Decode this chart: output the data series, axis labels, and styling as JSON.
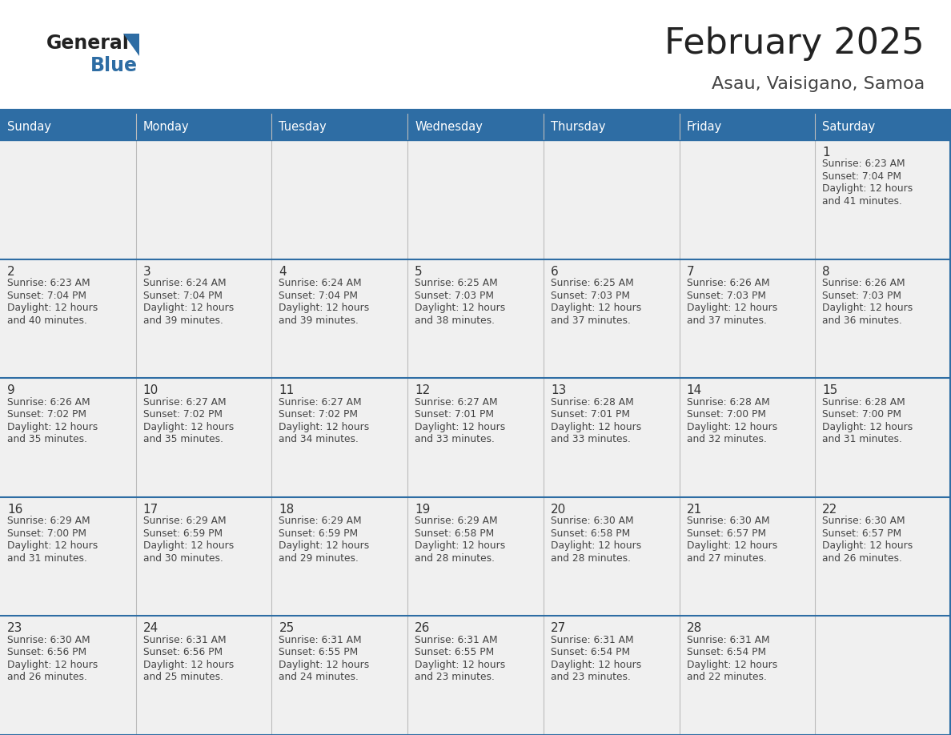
{
  "title": "February 2025",
  "subtitle": "Asau, Vaisigano, Samoa",
  "header_bg": "#2E6DA4",
  "header_text_color": "#FFFFFF",
  "cell_bg": "#F0F0F0",
  "border_color": "#2E6DA4",
  "row_sep_color": "#2E6DA4",
  "col_sep_color": "#CCCCCC",
  "day_headers": [
    "Sunday",
    "Monday",
    "Tuesday",
    "Wednesday",
    "Thursday",
    "Friday",
    "Saturday"
  ],
  "title_color": "#222222",
  "subtitle_color": "#444444",
  "day_num_color": "#333333",
  "cell_text_color": "#444444",
  "logo_general_color": "#222222",
  "logo_blue_color": "#2E6DA4",
  "logo_triangle_color": "#2E6DA4",
  "calendar": [
    [
      null,
      null,
      null,
      null,
      null,
      null,
      {
        "day": "1",
        "sunrise": "6:23 AM",
        "sunset": "7:04 PM",
        "daylight": "12 hours and 41 minutes."
      }
    ],
    [
      {
        "day": "2",
        "sunrise": "6:23 AM",
        "sunset": "7:04 PM",
        "daylight": "12 hours and 40 minutes."
      },
      {
        "day": "3",
        "sunrise": "6:24 AM",
        "sunset": "7:04 PM",
        "daylight": "12 hours and 39 minutes."
      },
      {
        "day": "4",
        "sunrise": "6:24 AM",
        "sunset": "7:04 PM",
        "daylight": "12 hours and 39 minutes."
      },
      {
        "day": "5",
        "sunrise": "6:25 AM",
        "sunset": "7:03 PM",
        "daylight": "12 hours and 38 minutes."
      },
      {
        "day": "6",
        "sunrise": "6:25 AM",
        "sunset": "7:03 PM",
        "daylight": "12 hours and 37 minutes."
      },
      {
        "day": "7",
        "sunrise": "6:26 AM",
        "sunset": "7:03 PM",
        "daylight": "12 hours and 37 minutes."
      },
      {
        "day": "8",
        "sunrise": "6:26 AM",
        "sunset": "7:03 PM",
        "daylight": "12 hours and 36 minutes."
      }
    ],
    [
      {
        "day": "9",
        "sunrise": "6:26 AM",
        "sunset": "7:02 PM",
        "daylight": "12 hours and 35 minutes."
      },
      {
        "day": "10",
        "sunrise": "6:27 AM",
        "sunset": "7:02 PM",
        "daylight": "12 hours and 35 minutes."
      },
      {
        "day": "11",
        "sunrise": "6:27 AM",
        "sunset": "7:02 PM",
        "daylight": "12 hours and 34 minutes."
      },
      {
        "day": "12",
        "sunrise": "6:27 AM",
        "sunset": "7:01 PM",
        "daylight": "12 hours and 33 minutes."
      },
      {
        "day": "13",
        "sunrise": "6:28 AM",
        "sunset": "7:01 PM",
        "daylight": "12 hours and 33 minutes."
      },
      {
        "day": "14",
        "sunrise": "6:28 AM",
        "sunset": "7:00 PM",
        "daylight": "12 hours and 32 minutes."
      },
      {
        "day": "15",
        "sunrise": "6:28 AM",
        "sunset": "7:00 PM",
        "daylight": "12 hours and 31 minutes."
      }
    ],
    [
      {
        "day": "16",
        "sunrise": "6:29 AM",
        "sunset": "7:00 PM",
        "daylight": "12 hours and 31 minutes."
      },
      {
        "day": "17",
        "sunrise": "6:29 AM",
        "sunset": "6:59 PM",
        "daylight": "12 hours and 30 minutes."
      },
      {
        "day": "18",
        "sunrise": "6:29 AM",
        "sunset": "6:59 PM",
        "daylight": "12 hours and 29 minutes."
      },
      {
        "day": "19",
        "sunrise": "6:29 AM",
        "sunset": "6:58 PM",
        "daylight": "12 hours and 28 minutes."
      },
      {
        "day": "20",
        "sunrise": "6:30 AM",
        "sunset": "6:58 PM",
        "daylight": "12 hours and 28 minutes."
      },
      {
        "day": "21",
        "sunrise": "6:30 AM",
        "sunset": "6:57 PM",
        "daylight": "12 hours and 27 minutes."
      },
      {
        "day": "22",
        "sunrise": "6:30 AM",
        "sunset": "6:57 PM",
        "daylight": "12 hours and 26 minutes."
      }
    ],
    [
      {
        "day": "23",
        "sunrise": "6:30 AM",
        "sunset": "6:56 PM",
        "daylight": "12 hours and 26 minutes."
      },
      {
        "day": "24",
        "sunrise": "6:31 AM",
        "sunset": "6:56 PM",
        "daylight": "12 hours and 25 minutes."
      },
      {
        "day": "25",
        "sunrise": "6:31 AM",
        "sunset": "6:55 PM",
        "daylight": "12 hours and 24 minutes."
      },
      {
        "day": "26",
        "sunrise": "6:31 AM",
        "sunset": "6:55 PM",
        "daylight": "12 hours and 23 minutes."
      },
      {
        "day": "27",
        "sunrise": "6:31 AM",
        "sunset": "6:54 PM",
        "daylight": "12 hours and 23 minutes."
      },
      {
        "day": "28",
        "sunrise": "6:31 AM",
        "sunset": "6:54 PM",
        "daylight": "12 hours and 22 minutes."
      },
      null
    ]
  ]
}
